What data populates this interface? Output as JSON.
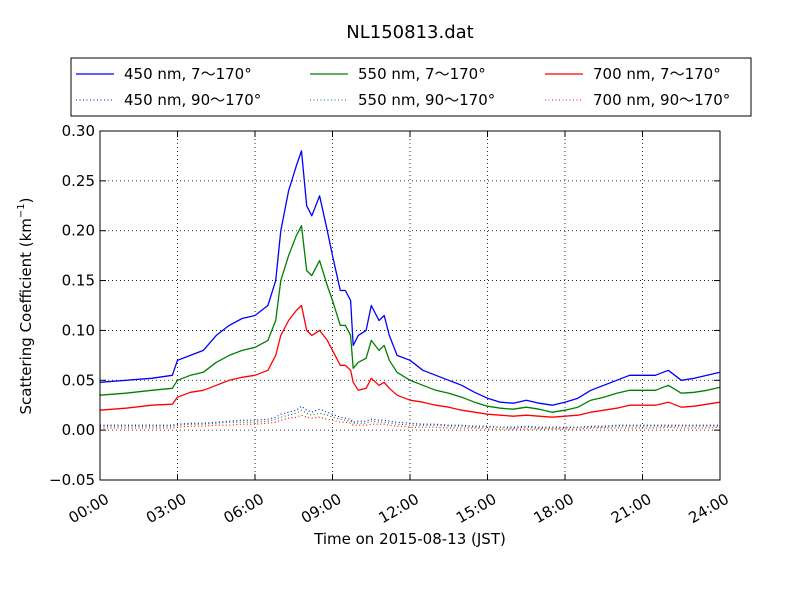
{
  "chart_data": {
    "type": "line",
    "title": "NL150813.dat",
    "xlabel": "Time on 2015-08-13 (JST)",
    "ylabel": "Scattering Coefficient (km",
    "ylabel_exponent": "−1",
    "ylabel_close": ")",
    "x_unit": "hours",
    "xlim": [
      0,
      24
    ],
    "ylim": [
      -0.05,
      0.3
    ],
    "x_ticks": [
      0,
      3,
      6,
      9,
      12,
      15,
      18,
      21,
      24
    ],
    "x_tick_labels": [
      "00:00",
      "03:00",
      "06:00",
      "09:00",
      "12:00",
      "15:00",
      "18:00",
      "21:00",
      "24:00"
    ],
    "y_ticks": [
      -0.05,
      0.0,
      0.05,
      0.1,
      0.15,
      0.2,
      0.25,
      0.3
    ],
    "y_tick_labels": [
      "−0.05",
      "0.00",
      "0.05",
      "0.10",
      "0.15",
      "0.20",
      "0.25",
      "0.30"
    ],
    "grid": true,
    "legend_position": "top",
    "x": [
      0,
      1,
      2,
      2.8,
      3,
      3.5,
      4,
      4.5,
      5,
      5.5,
      6,
      6.5,
      6.8,
      7,
      7.3,
      7.6,
      7.8,
      8,
      8.2,
      8.5,
      8.8,
      9,
      9.3,
      9.5,
      9.7,
      9.8,
      10,
      10.3,
      10.5,
      10.8,
      11,
      11.2,
      11.5,
      12,
      12.5,
      13,
      13.5,
      14,
      14.5,
      15,
      15.5,
      16,
      16.5,
      17,
      17.5,
      18,
      18.5,
      19,
      19.5,
      20,
      20.5,
      21,
      21.5,
      22,
      22.5,
      23,
      23.5,
      24
    ],
    "series": [
      {
        "name": "450 nm, 7～170°",
        "color": "#0000ff",
        "style": "solid",
        "values": [
          0.048,
          0.05,
          0.052,
          0.055,
          0.07,
          0.075,
          0.08,
          0.095,
          0.105,
          0.112,
          0.115,
          0.125,
          0.15,
          0.2,
          0.24,
          0.265,
          0.28,
          0.225,
          0.215,
          0.235,
          0.2,
          0.175,
          0.14,
          0.14,
          0.13,
          0.085,
          0.095,
          0.1,
          0.125,
          0.11,
          0.115,
          0.095,
          0.075,
          0.07,
          0.06,
          0.055,
          0.05,
          0.045,
          0.038,
          0.032,
          0.028,
          0.027,
          0.03,
          0.027,
          0.025,
          0.028,
          0.032,
          0.04,
          0.045,
          0.05,
          0.055,
          0.055,
          0.055,
          0.06,
          0.05,
          0.052,
          0.055,
          0.058
        ]
      },
      {
        "name": "550 nm, 7～170°",
        "color": "#008000",
        "style": "solid",
        "values": [
          0.035,
          0.037,
          0.04,
          0.042,
          0.05,
          0.055,
          0.058,
          0.068,
          0.075,
          0.08,
          0.083,
          0.09,
          0.11,
          0.15,
          0.175,
          0.195,
          0.205,
          0.16,
          0.155,
          0.17,
          0.145,
          0.13,
          0.105,
          0.105,
          0.095,
          0.062,
          0.068,
          0.072,
          0.09,
          0.08,
          0.085,
          0.07,
          0.058,
          0.05,
          0.045,
          0.04,
          0.037,
          0.033,
          0.028,
          0.024,
          0.022,
          0.021,
          0.023,
          0.021,
          0.018,
          0.02,
          0.023,
          0.03,
          0.033,
          0.037,
          0.04,
          0.04,
          0.04,
          0.045,
          0.037,
          0.038,
          0.04,
          0.043
        ]
      },
      {
        "name": "700 nm, 7～170°",
        "color": "#ff0000",
        "style": "solid",
        "values": [
          0.02,
          0.022,
          0.025,
          0.026,
          0.033,
          0.038,
          0.04,
          0.045,
          0.05,
          0.053,
          0.055,
          0.06,
          0.075,
          0.095,
          0.11,
          0.12,
          0.125,
          0.1,
          0.095,
          0.1,
          0.09,
          0.08,
          0.065,
          0.065,
          0.06,
          0.048,
          0.04,
          0.042,
          0.052,
          0.045,
          0.048,
          0.042,
          0.035,
          0.03,
          0.028,
          0.025,
          0.023,
          0.02,
          0.018,
          0.016,
          0.015,
          0.014,
          0.015,
          0.014,
          0.013,
          0.014,
          0.015,
          0.018,
          0.02,
          0.022,
          0.025,
          0.025,
          0.025,
          0.028,
          0.023,
          0.024,
          0.026,
          0.028
        ]
      },
      {
        "name": "450 nm, 90～170°",
        "color": "#0000ff",
        "style": "dotted",
        "values": [
          0.005,
          0.005,
          0.005,
          0.005,
          0.006,
          0.007,
          0.007,
          0.008,
          0.009,
          0.01,
          0.01,
          0.011,
          0.013,
          0.016,
          0.018,
          0.02,
          0.024,
          0.02,
          0.018,
          0.021,
          0.018,
          0.016,
          0.013,
          0.012,
          0.011,
          0.008,
          0.009,
          0.009,
          0.011,
          0.01,
          0.01,
          0.009,
          0.008,
          0.007,
          0.006,
          0.006,
          0.005,
          0.005,
          0.004,
          0.004,
          0.003,
          0.003,
          0.004,
          0.003,
          0.003,
          0.003,
          0.003,
          0.004,
          0.004,
          0.005,
          0.005,
          0.005,
          0.005,
          0.005,
          0.005,
          0.005,
          0.005,
          0.005
        ]
      },
      {
        "name": "550 nm, 90～170°",
        "color": "#008000",
        "style": "dotted",
        "values": [
          0.004,
          0.004,
          0.004,
          0.004,
          0.005,
          0.006,
          0.006,
          0.007,
          0.008,
          0.008,
          0.008,
          0.009,
          0.011,
          0.013,
          0.015,
          0.017,
          0.02,
          0.017,
          0.015,
          0.017,
          0.015,
          0.013,
          0.011,
          0.01,
          0.009,
          0.007,
          0.007,
          0.007,
          0.009,
          0.008,
          0.008,
          0.007,
          0.006,
          0.005,
          0.005,
          0.005,
          0.004,
          0.004,
          0.003,
          0.003,
          0.003,
          0.002,
          0.003,
          0.002,
          0.002,
          0.002,
          0.003,
          0.003,
          0.003,
          0.004,
          0.004,
          0.004,
          0.004,
          0.004,
          0.004,
          0.004,
          0.004,
          0.004
        ]
      },
      {
        "name": "700 nm, 90～170°",
        "color": "#ff0000",
        "style": "dotted",
        "values": [
          0.002,
          0.002,
          0.002,
          0.002,
          0.003,
          0.004,
          0.004,
          0.005,
          0.005,
          0.006,
          0.006,
          0.007,
          0.008,
          0.01,
          0.012,
          0.013,
          0.015,
          0.013,
          0.012,
          0.013,
          0.011,
          0.01,
          0.008,
          0.008,
          0.007,
          0.005,
          0.005,
          0.005,
          0.006,
          0.006,
          0.006,
          0.005,
          0.004,
          0.003,
          0.003,
          0.003,
          0.002,
          0.002,
          0.002,
          0.001,
          0.001,
          0.001,
          0.001,
          0.001,
          0.001,
          0.001,
          0.001,
          0.002,
          0.002,
          0.002,
          0.002,
          0.002,
          0.002,
          0.003,
          0.002,
          0.002,
          0.002,
          0.003
        ]
      }
    ]
  }
}
